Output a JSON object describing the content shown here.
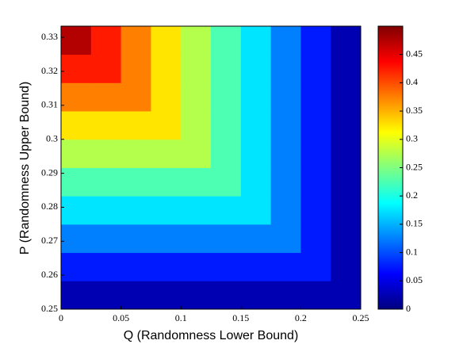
{
  "chart_data": {
    "type": "heatmap",
    "xlabel": "Q (Randomness Lower Bound)",
    "ylabel": "P (Randomness Upper Bound)",
    "colormap": "jet",
    "x": [
      0.0125,
      0.0375,
      0.0625,
      0.0875,
      0.1125,
      0.1375,
      0.1625,
      0.1875,
      0.2125,
      0.2375
    ],
    "y": [
      0.25417,
      0.2625,
      0.27083,
      0.27917,
      0.2875,
      0.29583,
      0.30417,
      0.3125,
      0.32083,
      0.32917
    ],
    "z": [
      [
        0.025,
        0.025,
        0.025,
        0.025,
        0.025,
        0.025,
        0.025,
        0.025,
        0.025,
        0.025
      ],
      [
        0.075,
        0.075,
        0.075,
        0.075,
        0.075,
        0.075,
        0.075,
        0.075,
        0.075,
        0.025
      ],
      [
        0.125,
        0.125,
        0.125,
        0.125,
        0.125,
        0.125,
        0.125,
        0.125,
        0.075,
        0.025
      ],
      [
        0.175,
        0.175,
        0.175,
        0.175,
        0.175,
        0.175,
        0.175,
        0.125,
        0.075,
        0.025
      ],
      [
        0.225,
        0.225,
        0.225,
        0.225,
        0.225,
        0.225,
        0.175,
        0.125,
        0.075,
        0.025
      ],
      [
        0.275,
        0.275,
        0.275,
        0.275,
        0.275,
        0.225,
        0.175,
        0.125,
        0.075,
        0.025
      ],
      [
        0.325,
        0.325,
        0.325,
        0.325,
        0.275,
        0.225,
        0.175,
        0.125,
        0.075,
        0.025
      ],
      [
        0.375,
        0.375,
        0.375,
        0.325,
        0.275,
        0.225,
        0.175,
        0.125,
        0.075,
        0.025
      ],
      [
        0.425,
        0.425,
        0.375,
        0.325,
        0.275,
        0.225,
        0.175,
        0.125,
        0.075,
        0.025
      ],
      [
        0.475,
        0.425,
        0.375,
        0.325,
        0.275,
        0.225,
        0.175,
        0.125,
        0.075,
        0.025
      ]
    ],
    "xlim": [
      0,
      0.25
    ],
    "ylim": [
      0.25,
      0.3333
    ],
    "xticks": [
      0,
      0.05,
      0.1,
      0.15,
      0.2,
      0.25
    ],
    "yticks": [
      0.25,
      0.26,
      0.27,
      0.28,
      0.29,
      0.3,
      0.31,
      0.32,
      0.33
    ],
    "clim": [
      0,
      0.5
    ],
    "cticks": [
      0,
      0.05,
      0.1,
      0.15,
      0.2,
      0.25,
      0.3,
      0.35,
      0.4,
      0.45
    ]
  }
}
